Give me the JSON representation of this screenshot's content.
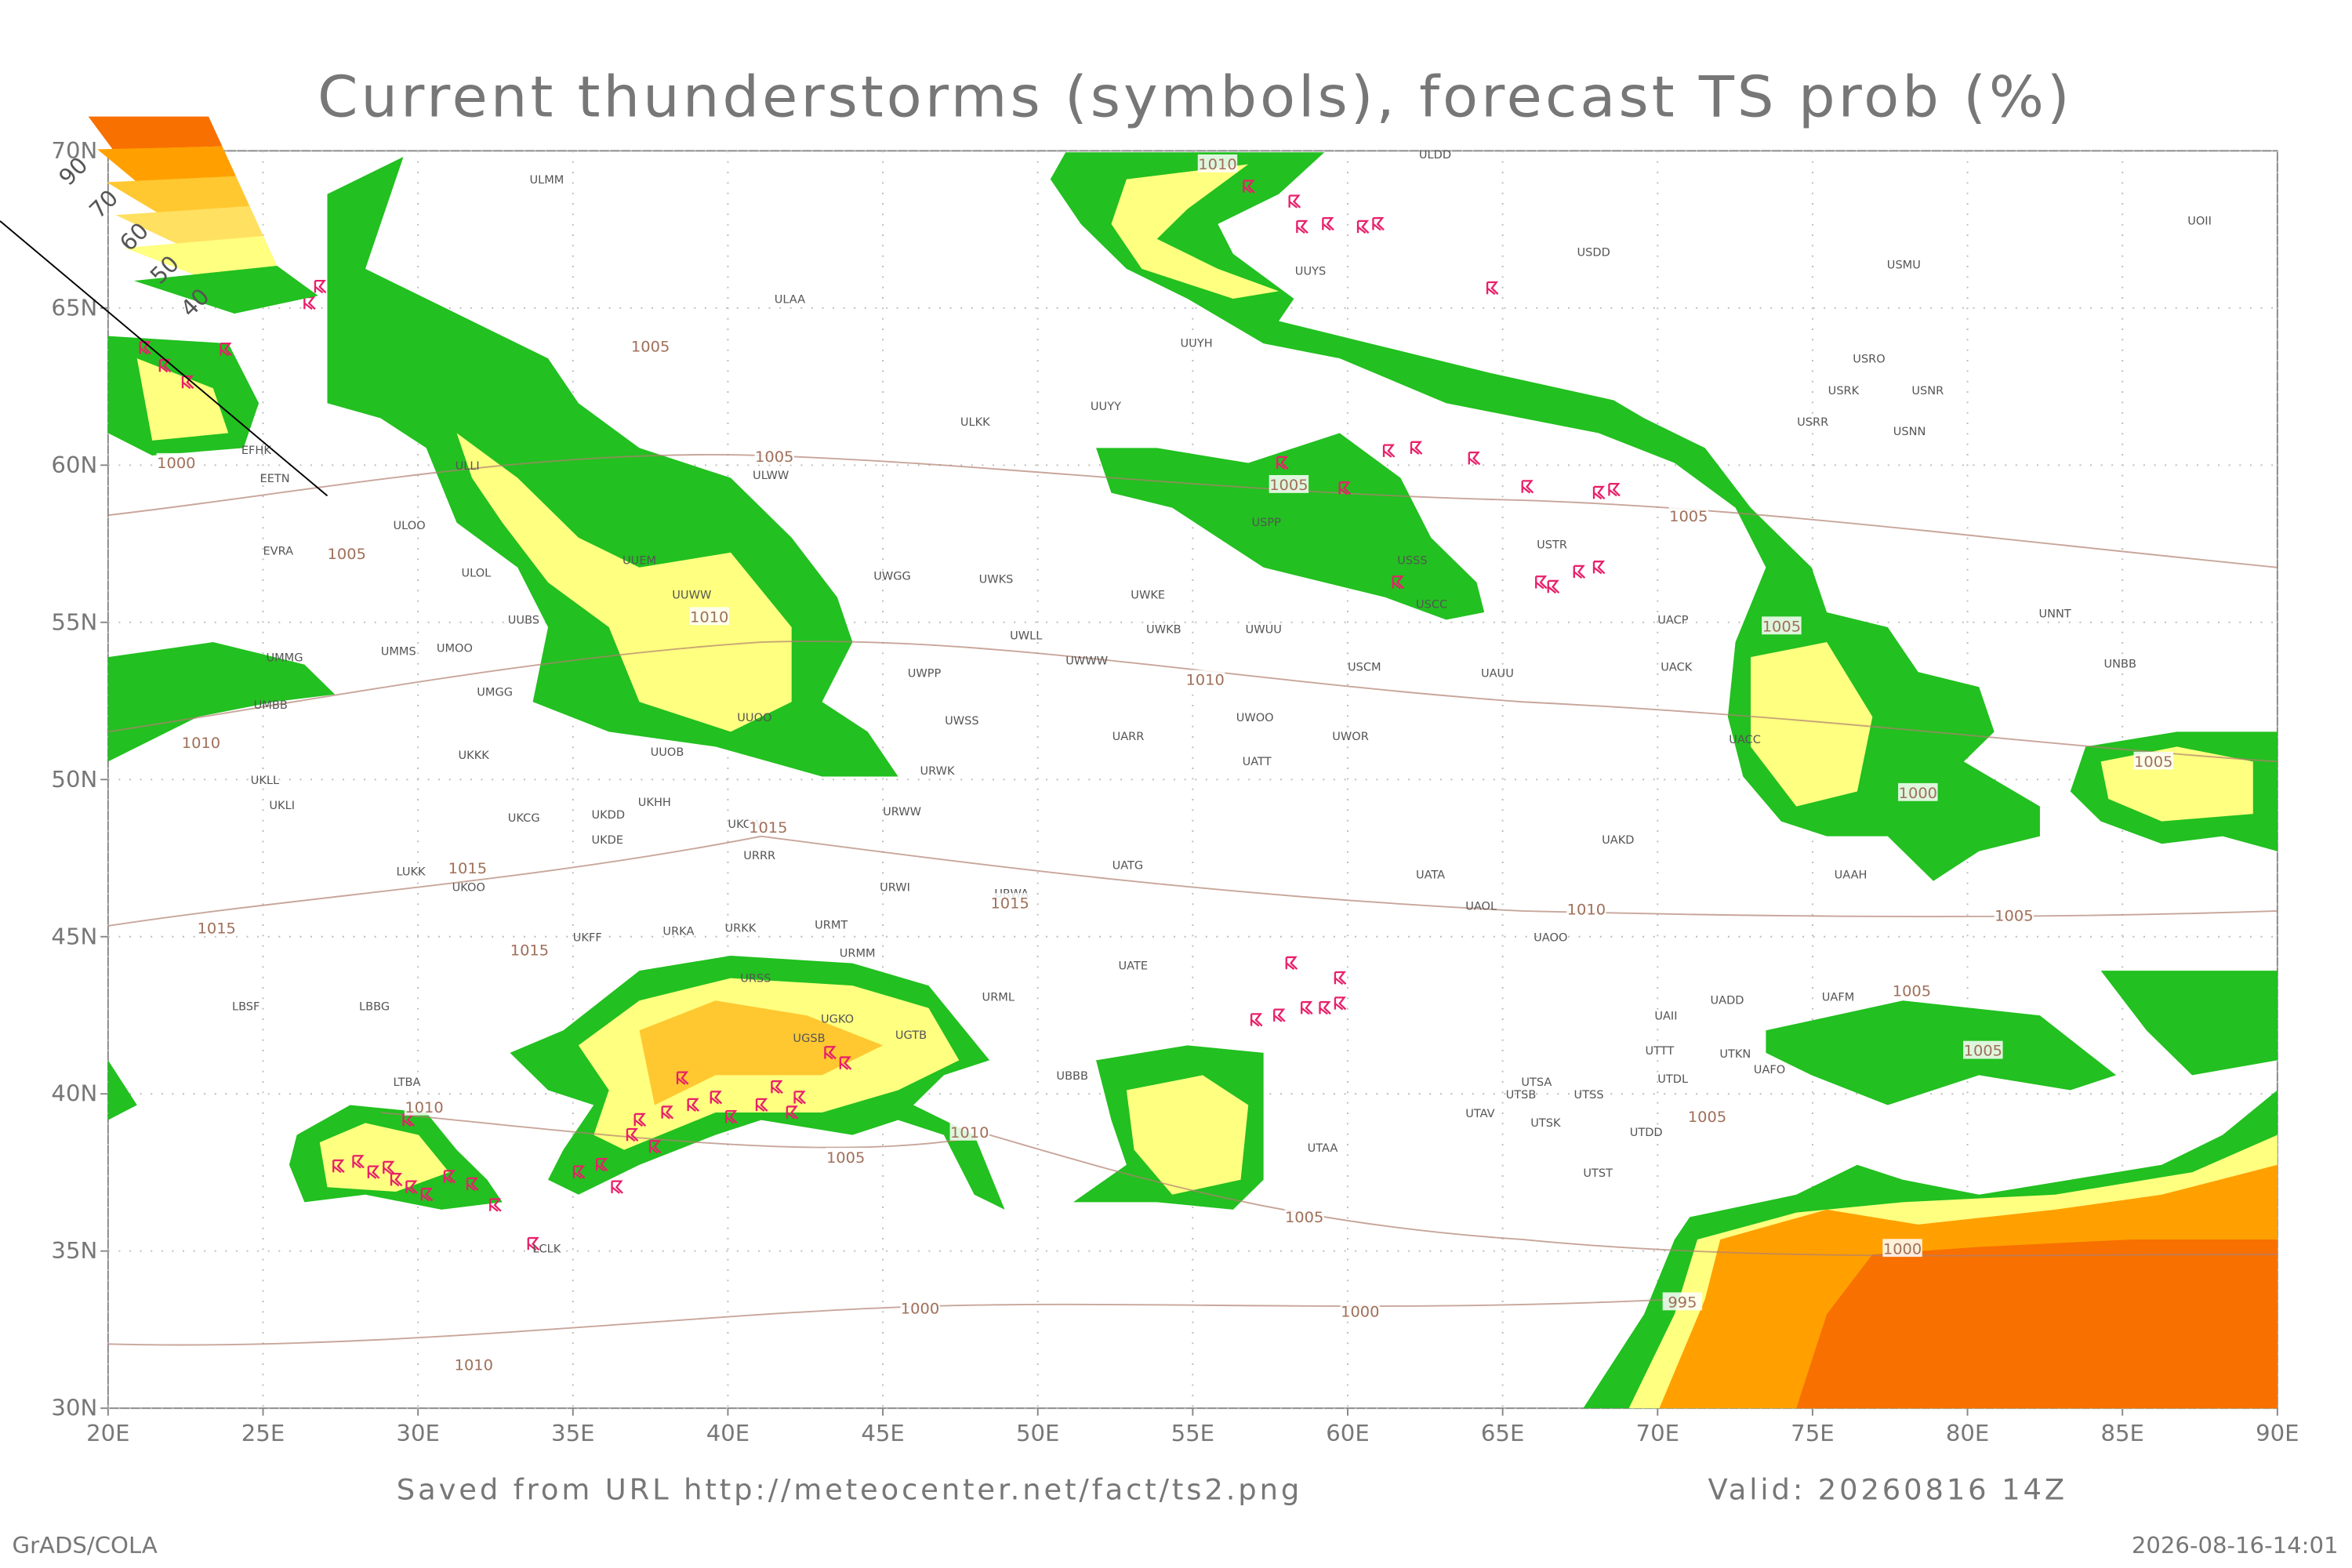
{
  "header": {
    "title": "Current thunderstorms (symbols), forecast TS prob (%)"
  },
  "map": {
    "xlim": [
      20,
      90
    ],
    "ylim": [
      30,
      70
    ],
    "grid": true,
    "xticks": [
      {
        "value": 20,
        "label": "20E"
      },
      {
        "value": 25,
        "label": "25E"
      },
      {
        "value": 30,
        "label": "30E"
      },
      {
        "value": 35,
        "label": "35E"
      },
      {
        "value": 40,
        "label": "40E"
      },
      {
        "value": 45,
        "label": "45E"
      },
      {
        "value": 50,
        "label": "50E"
      },
      {
        "value": 55,
        "label": "55E"
      },
      {
        "value": 60,
        "label": "60E"
      },
      {
        "value": 65,
        "label": "65E"
      },
      {
        "value": 70,
        "label": "70E"
      },
      {
        "value": 75,
        "label": "75E"
      },
      {
        "value": 80,
        "label": "80E"
      },
      {
        "value": 85,
        "label": "85E"
      },
      {
        "value": 90,
        "label": "90E"
      }
    ],
    "yticks": [
      {
        "value": 30,
        "label": "30N"
      },
      {
        "value": 35,
        "label": "35N"
      },
      {
        "value": 40,
        "label": "40N"
      },
      {
        "value": 45,
        "label": "45N"
      },
      {
        "value": 50,
        "label": "50N"
      },
      {
        "value": 55,
        "label": "55N"
      },
      {
        "value": 60,
        "label": "60N"
      },
      {
        "value": 65,
        "label": "65N"
      },
      {
        "value": 70,
        "label": "70N"
      }
    ],
    "legend": {
      "labels": [
        90,
        70,
        60,
        50,
        40
      ],
      "colors": [
        "#f87000",
        "#ffa000",
        "#ffc830",
        "#ffe060",
        "#ffff80",
        "#22c020"
      ]
    },
    "stations": [
      {
        "label": "ULMM",
        "lon": 33.6,
        "lat": 69.1
      },
      {
        "label": "ULDD",
        "lon": 62.3,
        "lat": 69.9
      },
      {
        "label": "ULAA",
        "lon": 41.5,
        "lat": 65.3
      },
      {
        "label": "USDD",
        "lon": 67.4,
        "lat": 66.8
      },
      {
        "label": "USMU",
        "lon": 77.4,
        "lat": 66.4
      },
      {
        "label": "UOII",
        "lon": 87.1,
        "lat": 67.8
      },
      {
        "label": "UUYS",
        "lon": 58.3,
        "lat": 66.2
      },
      {
        "label": "UUYH",
        "lon": 54.6,
        "lat": 63.9
      },
      {
        "label": "ULKK",
        "lon": 47.5,
        "lat": 61.4
      },
      {
        "label": "UUYY",
        "lon": 51.7,
        "lat": 61.9
      },
      {
        "label": "USRO",
        "lon": 76.3,
        "lat": 63.4
      },
      {
        "label": "USRK",
        "lon": 75.5,
        "lat": 62.4
      },
      {
        "label": "USNR",
        "lon": 78.2,
        "lat": 62.4
      },
      {
        "label": "USRR",
        "lon": 74.5,
        "lat": 61.4
      },
      {
        "label": "USNN",
        "lon": 77.6,
        "lat": 61.1
      },
      {
        "label": "EFHK",
        "lon": 24.3,
        "lat": 60.5
      },
      {
        "label": "EETN",
        "lon": 24.9,
        "lat": 59.6
      },
      {
        "label": "ULLI",
        "lon": 31.2,
        "lat": 60.0
      },
      {
        "label": "ULWW",
        "lon": 40.8,
        "lat": 59.7
      },
      {
        "label": "ULOO",
        "lon": 29.2,
        "lat": 58.1
      },
      {
        "label": "EVRA",
        "lon": 25.0,
        "lat": 57.3
      },
      {
        "label": "ULOL",
        "lon": 31.4,
        "lat": 56.6
      },
      {
        "label": "UUEM",
        "lon": 36.6,
        "lat": 57.0
      },
      {
        "label": "UUWW",
        "lon": 38.2,
        "lat": 55.9
      },
      {
        "label": "UWGG",
        "lon": 44.7,
        "lat": 56.5
      },
      {
        "label": "UWKS",
        "lon": 48.1,
        "lat": 56.4
      },
      {
        "label": "UWKE",
        "lon": 53.0,
        "lat": 55.9
      },
      {
        "label": "UUBS",
        "lon": 32.9,
        "lat": 55.1
      },
      {
        "label": "UWKB",
        "lon": 53.5,
        "lat": 54.8
      },
      {
        "label": "UWUU",
        "lon": 56.7,
        "lat": 54.8
      },
      {
        "label": "USPP",
        "lon": 56.9,
        "lat": 58.2
      },
      {
        "label": "USSS",
        "lon": 61.6,
        "lat": 57.0
      },
      {
        "label": "USCC",
        "lon": 62.2,
        "lat": 55.6
      },
      {
        "label": "USTR",
        "lon": 66.1,
        "lat": 57.5
      },
      {
        "label": "UACP",
        "lon": 70.0,
        "lat": 55.1
      },
      {
        "label": "UNNT",
        "lon": 82.3,
        "lat": 55.3
      },
      {
        "label": "UMMG",
        "lon": 25.1,
        "lat": 53.9
      },
      {
        "label": "UMMS",
        "lon": 28.8,
        "lat": 54.1
      },
      {
        "label": "UMOO",
        "lon": 30.6,
        "lat": 54.2
      },
      {
        "label": "UWLL",
        "lon": 49.1,
        "lat": 54.6
      },
      {
        "label": "UWWW",
        "lon": 50.9,
        "lat": 53.8
      },
      {
        "label": "UWPP",
        "lon": 45.8,
        "lat": 53.4
      },
      {
        "label": "USCM",
        "lon": 60.0,
        "lat": 53.6
      },
      {
        "label": "UAUU",
        "lon": 64.3,
        "lat": 53.4
      },
      {
        "label": "UACK",
        "lon": 70.1,
        "lat": 53.6
      },
      {
        "label": "UNBB",
        "lon": 84.4,
        "lat": 53.7
      },
      {
        "label": "UMGG",
        "lon": 31.9,
        "lat": 52.8
      },
      {
        "label": "UMBB",
        "lon": 24.7,
        "lat": 52.4
      },
      {
        "label": "UUOO",
        "lon": 40.3,
        "lat": 52.0
      },
      {
        "label": "UWSS",
        "lon": 47.0,
        "lat": 51.9
      },
      {
        "label": "UWOO",
        "lon": 56.4,
        "lat": 52.0
      },
      {
        "label": "UWOR",
        "lon": 59.5,
        "lat": 51.4
      },
      {
        "label": "UARR",
        "lon": 52.4,
        "lat": 51.4
      },
      {
        "label": "UACC",
        "lon": 72.3,
        "lat": 51.3
      },
      {
        "label": "UKKK",
        "lon": 31.3,
        "lat": 50.8
      },
      {
        "label": "UUOB",
        "lon": 37.5,
        "lat": 50.9
      },
      {
        "label": "URWK",
        "lon": 46.2,
        "lat": 50.3
      },
      {
        "label": "UATT",
        "lon": 56.6,
        "lat": 50.6
      },
      {
        "label": "UKLL",
        "lon": 24.6,
        "lat": 50.0
      },
      {
        "label": "UKLI",
        "lon": 25.2,
        "lat": 49.2
      },
      {
        "label": "UKHH",
        "lon": 37.1,
        "lat": 49.3
      },
      {
        "label": "UKDD",
        "lon": 35.6,
        "lat": 48.9
      },
      {
        "label": "UKCW",
        "lon": 40.0,
        "lat": 48.6
      },
      {
        "label": "URWW",
        "lon": 45.0,
        "lat": 49.0
      },
      {
        "label": "UKCG",
        "lon": 32.9,
        "lat": 48.8
      },
      {
        "label": "UKDE",
        "lon": 35.6,
        "lat": 48.1
      },
      {
        "label": "UAKD",
        "lon": 68.2,
        "lat": 48.1
      },
      {
        "label": "URRR",
        "lon": 40.5,
        "lat": 47.6
      },
      {
        "label": "LUKK",
        "lon": 29.3,
        "lat": 47.1
      },
      {
        "label": "UKOO",
        "lon": 31.1,
        "lat": 46.6
      },
      {
        "label": "UATG",
        "lon": 52.4,
        "lat": 47.3
      },
      {
        "label": "UATA",
        "lon": 62.2,
        "lat": 47.0
      },
      {
        "label": "UAAH",
        "lon": 75.7,
        "lat": 47.0
      },
      {
        "label": "URWI",
        "lon": 44.9,
        "lat": 46.6
      },
      {
        "label": "URWA",
        "lon": 48.6,
        "lat": 46.4
      },
      {
        "label": "URKA",
        "lon": 37.9,
        "lat": 45.2
      },
      {
        "label": "URKK",
        "lon": 39.9,
        "lat": 45.3
      },
      {
        "label": "URMT",
        "lon": 42.8,
        "lat": 45.4
      },
      {
        "label": "UKFF",
        "lon": 35.0,
        "lat": 45.0
      },
      {
        "label": "UAOL",
        "lon": 63.8,
        "lat": 46.0
      },
      {
        "label": "UAOO",
        "lon": 66.0,
        "lat": 45.0
      },
      {
        "label": "UATE",
        "lon": 52.6,
        "lat": 44.1
      },
      {
        "label": "URMM",
        "lon": 43.6,
        "lat": 44.5
      },
      {
        "label": "URSS",
        "lon": 40.4,
        "lat": 43.7
      },
      {
        "label": "URML",
        "lon": 48.2,
        "lat": 43.1
      },
      {
        "label": "LBSF",
        "lon": 24.0,
        "lat": 42.8
      },
      {
        "label": "LBBG",
        "lon": 28.1,
        "lat": 42.8
      },
      {
        "label": "UGKO",
        "lon": 43.0,
        "lat": 42.4
      },
      {
        "label": "UGTB",
        "lon": 45.4,
        "lat": 41.9
      },
      {
        "label": "UGSB",
        "lon": 42.1,
        "lat": 41.8
      },
      {
        "label": "UBBB",
        "lon": 50.6,
        "lat": 40.6
      },
      {
        "label": "LTBA",
        "lon": 29.2,
        "lat": 40.4
      },
      {
        "label": "UAII",
        "lon": 69.9,
        "lat": 42.5
      },
      {
        "label": "UADD",
        "lon": 71.7,
        "lat": 43.0
      },
      {
        "label": "UAFM",
        "lon": 75.3,
        "lat": 43.1
      },
      {
        "label": "UTTT",
        "lon": 69.6,
        "lat": 41.4
      },
      {
        "label": "UTKN",
        "lon": 72.0,
        "lat": 41.3
      },
      {
        "label": "UAFO",
        "lon": 73.1,
        "lat": 40.8
      },
      {
        "label": "UTDL",
        "lon": 70.0,
        "lat": 40.5
      },
      {
        "label": "UTSA",
        "lon": 65.6,
        "lat": 40.4
      },
      {
        "label": "UTSB",
        "lon": 65.1,
        "lat": 40.0
      },
      {
        "label": "UTSS",
        "lon": 67.3,
        "lat": 40.0
      },
      {
        "label": "UTAV",
        "lon": 63.8,
        "lat": 39.4
      },
      {
        "label": "UTSK",
        "lon": 65.9,
        "lat": 39.1
      },
      {
        "label": "UTDD",
        "lon": 69.1,
        "lat": 38.8
      },
      {
        "label": "UTAA",
        "lon": 58.7,
        "lat": 38.3
      },
      {
        "label": "UTST",
        "lon": 67.6,
        "lat": 37.5
      },
      {
        "label": "LCLK",
        "lon": 33.7,
        "lat": 35.1
      }
    ],
    "isobar_labels": [
      {
        "value": 1010,
        "lon": 55.8,
        "lat": 69.6
      },
      {
        "value": 1005,
        "lon": 37.5,
        "lat": 63.8
      },
      {
        "value": 1005,
        "lon": 41.5,
        "lat": 60.3
      },
      {
        "value": 1000,
        "lon": 22.2,
        "lat": 60.1
      },
      {
        "value": 1005,
        "lon": 27.7,
        "lat": 57.2
      },
      {
        "value": 1005,
        "lon": 58.1,
        "lat": 59.4
      },
      {
        "value": 1005,
        "lon": 71.0,
        "lat": 58.4
      },
      {
        "value": 1010,
        "lon": 39.4,
        "lat": 55.2
      },
      {
        "value": 1005,
        "lon": 74.0,
        "lat": 54.9
      },
      {
        "value": 1010,
        "lon": 55.4,
        "lat": 53.2
      },
      {
        "value": 1010,
        "lon": 23.0,
        "lat": 51.2
      },
      {
        "value": 1015,
        "lon": 41.3,
        "lat": 48.5
      },
      {
        "value": 1015,
        "lon": 31.6,
        "lat": 47.2
      },
      {
        "value": 1015,
        "lon": 49.1,
        "lat": 46.1
      },
      {
        "value": 1010,
        "lon": 67.7,
        "lat": 45.9
      },
      {
        "value": 1015,
        "lon": 23.5,
        "lat": 45.3
      },
      {
        "value": 1015,
        "lon": 33.6,
        "lat": 44.6
      },
      {
        "value": 1005,
        "lon": 81.5,
        "lat": 45.7
      },
      {
        "value": 1005,
        "lon": 78.2,
        "lat": 43.3
      },
      {
        "value": 1005,
        "lon": 80.5,
        "lat": 41.4
      },
      {
        "value": 1010,
        "lon": 30.2,
        "lat": 39.6
      },
      {
        "value": 1010,
        "lon": 47.8,
        "lat": 38.8
      },
      {
        "value": 1005,
        "lon": 43.8,
        "lat": 38.0
      },
      {
        "value": 1005,
        "lon": 71.6,
        "lat": 39.3
      },
      {
        "value": 1005,
        "lon": 58.6,
        "lat": 36.1
      },
      {
        "value": 1000,
        "lon": 77.9,
        "lat": 35.1
      },
      {
        "value": 995,
        "lon": 70.8,
        "lat": 33.4
      },
      {
        "value": 1000,
        "lon": 46.2,
        "lat": 33.2
      },
      {
        "value": 1000,
        "lon": 60.4,
        "lat": 33.1
      },
      {
        "value": 1010,
        "lon": 31.8,
        "lat": 31.4
      },
      {
        "value": 1005,
        "lon": 86.0,
        "lat": 50.6
      },
      {
        "value": 1000,
        "lon": 78.4,
        "lat": 49.6
      }
    ]
  },
  "footer": {
    "source": "Saved from URL http://meteocenter.net/fact/ts2.png",
    "valid": "Valid: 20260816 14Z",
    "software": "GrADS/COLA",
    "timestamp": "2026-08-16-14:01"
  }
}
